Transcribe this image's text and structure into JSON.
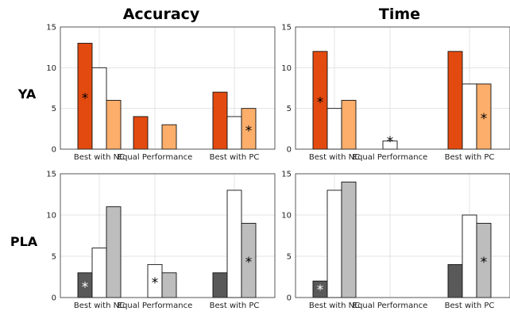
{
  "figure": {
    "column_titles": [
      "Accuracy",
      "Time"
    ],
    "row_titles": [
      "YA",
      "PLA"
    ]
  },
  "colors": {
    "YA": [
      "#e34a0f",
      "#ffffff",
      "#fdae6b"
    ],
    "PLA": [
      "#595959",
      "#ffffff",
      "#bdbdbd"
    ]
  },
  "chart_data": [
    {
      "type": "bar",
      "title": "Accuracy",
      "row": "YA",
      "categories": [
        "Best with NC",
        "Equal Performance",
        "Best with PC"
      ],
      "series": [
        {
          "values": [
            13,
            4,
            7
          ]
        },
        {
          "values": [
            10,
            0,
            4
          ]
        },
        {
          "values": [
            6,
            3,
            5
          ]
        }
      ],
      "significant": [
        [
          0,
          0
        ],
        [
          2,
          2
        ]
      ],
      "ylim": [
        0,
        15
      ],
      "yticks": [
        0,
        5,
        10,
        15
      ],
      "grid": true
    },
    {
      "type": "bar",
      "title": "Time",
      "row": "YA",
      "categories": [
        "Best with NC",
        "Equal Performance",
        "Best with PC"
      ],
      "series": [
        {
          "values": [
            12,
            0,
            12
          ]
        },
        {
          "values": [
            5,
            1,
            8
          ]
        },
        {
          "values": [
            6,
            0,
            8
          ]
        }
      ],
      "significant": [
        [
          0,
          0
        ],
        [
          1,
          1
        ],
        [
          2,
          2
        ]
      ],
      "ylim": [
        0,
        15
      ],
      "yticks": [
        0,
        5,
        10,
        15
      ],
      "grid": true
    },
    {
      "type": "bar",
      "title": "Accuracy",
      "row": "PLA",
      "categories": [
        "Best with NC",
        "Equal Performance",
        "Best with PC"
      ],
      "series": [
        {
          "values": [
            3,
            0,
            3
          ]
        },
        {
          "values": [
            6,
            4,
            13
          ]
        },
        {
          "values": [
            11,
            3,
            9
          ]
        }
      ],
      "significant": [
        [
          0,
          0
        ],
        [
          1,
          1
        ],
        [
          2,
          2
        ]
      ],
      "ylim": [
        0,
        15
      ],
      "yticks": [
        0,
        5,
        10,
        15
      ],
      "grid": true
    },
    {
      "type": "bar",
      "title": "Time",
      "row": "PLA",
      "categories": [
        "Best with NC",
        "Equal Performance",
        "Best with PC"
      ],
      "series": [
        {
          "values": [
            2,
            0,
            4
          ]
        },
        {
          "values": [
            13,
            0,
            10
          ]
        },
        {
          "values": [
            14,
            0,
            9
          ]
        }
      ],
      "significant": [
        [
          0,
          0
        ],
        [
          2,
          2
        ]
      ],
      "ylim": [
        0,
        15
      ],
      "yticks": [
        0,
        5,
        10,
        15
      ],
      "grid": true
    }
  ]
}
